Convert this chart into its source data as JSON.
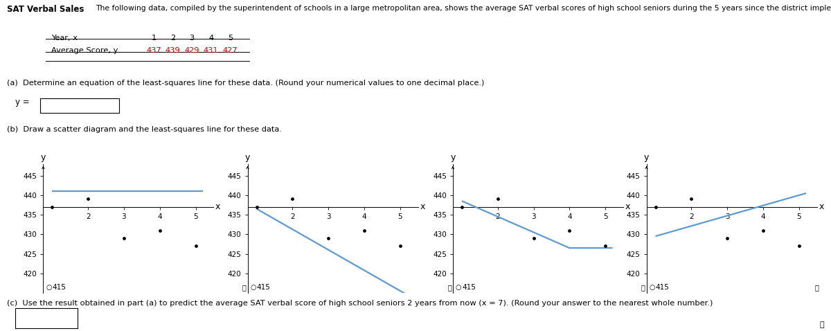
{
  "x_data": [
    1,
    2,
    3,
    4,
    5
  ],
  "y_data": [
    437,
    439,
    429,
    431,
    427
  ],
  "table_years": [
    "1",
    "2",
    "3",
    "4",
    "5"
  ],
  "table_scores": [
    "437",
    "439",
    "429",
    "431",
    "427"
  ],
  "part_a_label": "(a)  Determine an equation of the least-squares line for these data. (Round your numerical values to one decimal place.)",
  "part_b_label": "(b)  Draw a scatter diagram and the least-squares line for these data.",
  "part_c_label": "(c)  Use the result obtained in part (a) to predict the average SAT verbal score of high school seniors 2 years from now (x = 7). (Round your answer to the nearest whole number.)",
  "line_color": "#5b9bd5",
  "scatter_color": "black",
  "scatter_size": 6,
  "line_width": 1.6,
  "plot1_line": {
    "x": [
      1.0,
      5.2
    ],
    "y": [
      441.0,
      441.0
    ]
  },
  "plot2_line": {
    "x": [
      1.0,
      5.2
    ],
    "y": [
      436.5,
      414.5
    ]
  },
  "plot3_line": {
    "x": [
      1.0,
      4.0,
      5.2
    ],
    "y": [
      438.5,
      426.5,
      426.5
    ]
  },
  "plot4_line": {
    "x": [
      1.0,
      5.2
    ],
    "y": [
      429.5,
      440.5
    ]
  },
  "background_color": "#ffffff",
  "text_color": "#000000",
  "red_data_color": "#cc0000",
  "yticks": [
    420,
    425,
    430,
    435,
    440,
    445
  ],
  "xticks": [
    2,
    3,
    4,
    5
  ],
  "xaxis_y": 437,
  "xlim": [
    0.75,
    5.5
  ],
  "ylim": [
    415,
    448
  ]
}
